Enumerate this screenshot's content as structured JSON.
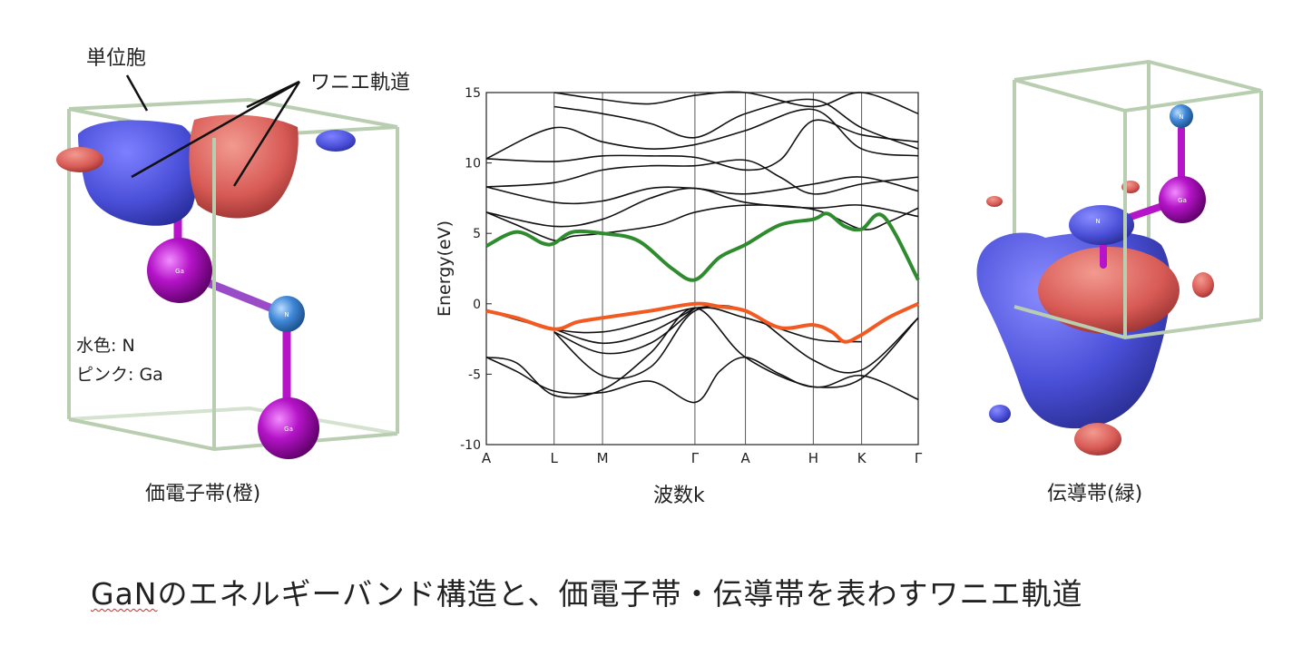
{
  "left_panel": {
    "label_unit_cell": "単位胞",
    "label_wannier": "ワニエ軌道",
    "legend_line1": "水色: N",
    "legend_line2": "ピンク: Ga",
    "atom_ga_top": "Ga",
    "atom_n": "N",
    "atom_ga_bottom": "Ga",
    "caption": "価電子帯(橙)"
  },
  "band_plot": {
    "xlabel": "波数k",
    "ylabel": "Energy(eV)"
  },
  "right_panel": {
    "atom_n_top": "N",
    "atom_ga": "Ga",
    "atom_n_mid": "N",
    "caption": "伝導帯(緑)"
  },
  "figure_caption": {
    "underlined_part": "GaN",
    "rest": "のエネルギーバンド構造と、価電子帯・伝導帯を表わすワニエ軌道"
  },
  "colors": {
    "valence_band": "#f25a22",
    "conduction_band": "#2e8b2e",
    "other_bands": "#111111",
    "cell_frame": "#b9ceb0",
    "orbital_blue": "#4a4fd8",
    "orbital_red": "#d85a55",
    "ga_atom": "#b514c8",
    "n_atom": "#3f87d6"
  },
  "chart_data": {
    "type": "line",
    "xlabel": "波数k",
    "ylabel": "Energy(eV)",
    "ylim": [
      -10,
      15
    ],
    "yticks": [
      -10,
      -5,
      0,
      5,
      10,
      15
    ],
    "kpoints": [
      {
        "label": "A",
        "x": 0.0
      },
      {
        "label": "L",
        "x": 0.157
      },
      {
        "label": "M",
        "x": 0.269
      },
      {
        "label": "Γ",
        "x": 0.483
      },
      {
        "label": "A",
        "x": 0.6
      },
      {
        "label": "H",
        "x": 0.757
      },
      {
        "label": "K",
        "x": 0.869
      },
      {
        "label": "Γ",
        "x": 1.0
      }
    ],
    "valence_band": {
      "name": "価電子帯",
      "color": "#f25a22",
      "points": [
        [
          0.0,
          -0.5
        ],
        [
          0.07,
          -1.0
        ],
        [
          0.157,
          -1.8
        ],
        [
          0.21,
          -1.3
        ],
        [
          0.269,
          -1.0
        ],
        [
          0.38,
          -0.5
        ],
        [
          0.483,
          0.0
        ],
        [
          0.54,
          -0.2
        ],
        [
          0.6,
          -0.5
        ],
        [
          0.68,
          -1.7
        ],
        [
          0.757,
          -1.5
        ],
        [
          0.8,
          -2.0
        ],
        [
          0.83,
          -2.7
        ],
        [
          0.869,
          -2.2
        ],
        [
          0.93,
          -1.0
        ],
        [
          1.0,
          0.0
        ]
      ]
    },
    "conduction_band": {
      "name": "伝導帯",
      "color": "#2e8b2e",
      "points": [
        [
          0.0,
          4.1
        ],
        [
          0.07,
          5.1
        ],
        [
          0.13,
          4.3
        ],
        [
          0.157,
          4.3
        ],
        [
          0.2,
          5.1
        ],
        [
          0.269,
          5.0
        ],
        [
          0.35,
          4.5
        ],
        [
          0.43,
          2.5
        ],
        [
          0.483,
          1.7
        ],
        [
          0.54,
          3.3
        ],
        [
          0.6,
          4.2
        ],
        [
          0.68,
          5.6
        ],
        [
          0.757,
          6.0
        ],
        [
          0.79,
          6.4
        ],
        [
          0.83,
          5.5
        ],
        [
          0.869,
          5.3
        ],
        [
          0.92,
          6.2
        ],
        [
          1.0,
          1.7
        ]
      ]
    },
    "other_bands": [
      [
        [
          0.0,
          -3.8
        ],
        [
          0.07,
          -4.2
        ],
        [
          0.157,
          -6.5
        ],
        [
          0.269,
          -6.1
        ],
        [
          0.38,
          -3.5
        ],
        [
          0.483,
          -0.3
        ],
        [
          0.6,
          -3.8
        ],
        [
          0.757,
          -5.9
        ],
        [
          0.869,
          -5.1
        ],
        [
          1.0,
          -6.8
        ]
      ],
      [
        [
          0.0,
          -3.8
        ],
        [
          0.07,
          -4.8
        ],
        [
          0.157,
          -6.2
        ],
        [
          0.269,
          -6.3
        ],
        [
          0.38,
          -5.5
        ],
        [
          0.483,
          -7.0
        ],
        [
          0.54,
          -4.8
        ],
        [
          0.6,
          -3.8
        ],
        [
          0.68,
          -5.0
        ],
        [
          0.757,
          -5.9
        ],
        [
          0.869,
          -5.3
        ],
        [
          1.0,
          -1.0
        ]
      ],
      [
        [
          0.0,
          -0.5
        ],
        [
          0.157,
          -1.8
        ],
        [
          0.269,
          -2.0
        ],
        [
          0.38,
          -1.2
        ],
        [
          0.483,
          -0.3
        ],
        [
          0.6,
          -0.5
        ],
        [
          0.757,
          -4.0
        ],
        [
          0.869,
          -4.7
        ],
        [
          1.0,
          -1.0
        ]
      ],
      [
        [
          0.157,
          -1.8
        ],
        [
          0.269,
          -2.8
        ],
        [
          0.38,
          -2.0
        ],
        [
          0.483,
          -0.3
        ]
      ],
      [
        [
          0.157,
          -2.0
        ],
        [
          0.269,
          -3.5
        ],
        [
          0.38,
          -2.8
        ],
        [
          0.483,
          -0.3
        ]
      ],
      [
        [
          0.157,
          -2.0
        ],
        [
          0.269,
          -5.1
        ],
        [
          0.38,
          -4.5
        ],
        [
          0.483,
          -0.5
        ],
        [
          0.6,
          -1.0
        ],
        [
          0.757,
          -2.5
        ],
        [
          0.869,
          -2.7
        ]
      ],
      [
        [
          0.0,
          6.5
        ],
        [
          0.07,
          5.6
        ],
        [
          0.157,
          4.5
        ],
        [
          0.2,
          4.8
        ],
        [
          0.269,
          5.0
        ],
        [
          0.4,
          5.6
        ],
        [
          0.483,
          6.5
        ],
        [
          0.6,
          7.0
        ],
        [
          0.757,
          6.7
        ],
        [
          0.869,
          5.3
        ],
        [
          0.93,
          5.8
        ],
        [
          1.0,
          6.8
        ]
      ],
      [
        [
          0.0,
          6.5
        ],
        [
          0.157,
          5.5
        ],
        [
          0.269,
          6.0
        ],
        [
          0.38,
          7.5
        ],
        [
          0.483,
          8.2
        ],
        [
          0.6,
          7.2
        ],
        [
          0.757,
          6.8
        ],
        [
          0.869,
          7.0
        ],
        [
          1.0,
          6.2
        ]
      ],
      [
        [
          0.0,
          8.3
        ],
        [
          0.157,
          7.2
        ],
        [
          0.269,
          7.3
        ],
        [
          0.38,
          8.2
        ],
        [
          0.483,
          8.2
        ],
        [
          0.6,
          7.8
        ],
        [
          0.757,
          8.5
        ],
        [
          0.869,
          9.0
        ],
        [
          1.0,
          8.0
        ]
      ],
      [
        [
          0.0,
          8.3
        ],
        [
          0.157,
          8.6
        ],
        [
          0.269,
          9.5
        ],
        [
          0.38,
          9.8
        ],
        [
          0.483,
          9.8
        ],
        [
          0.6,
          10.2
        ],
        [
          0.68,
          9.0
        ],
        [
          0.757,
          7.8
        ],
        [
          0.869,
          8.5
        ],
        [
          1.0,
          9.0
        ]
      ],
      [
        [
          0.0,
          10.3
        ],
        [
          0.157,
          10.1
        ],
        [
          0.269,
          10.5
        ],
        [
          0.38,
          10.5
        ],
        [
          0.483,
          10.4
        ],
        [
          0.6,
          9.5
        ],
        [
          0.68,
          10.2
        ],
        [
          0.757,
          13.0
        ],
        [
          0.869,
          12.0
        ],
        [
          1.0,
          11.5
        ]
      ],
      [
        [
          0.0,
          10.3
        ],
        [
          0.157,
          12.5
        ],
        [
          0.269,
          11.5
        ],
        [
          0.38,
          11.0
        ],
        [
          0.483,
          11.3
        ],
        [
          0.6,
          12.3
        ],
        [
          0.757,
          13.8
        ],
        [
          0.869,
          11.0
        ],
        [
          1.0,
          10.5
        ]
      ],
      [
        [
          0.157,
          14.0
        ],
        [
          0.269,
          13.5
        ],
        [
          0.38,
          12.8
        ],
        [
          0.483,
          11.8
        ],
        [
          0.6,
          13.5
        ],
        [
          0.757,
          14.5
        ],
        [
          0.869,
          12.5
        ],
        [
          1.0,
          11.0
        ]
      ],
      [
        [
          0.157,
          15.0
        ],
        [
          0.269,
          14.5
        ],
        [
          0.38,
          14.2
        ],
        [
          0.483,
          14.8
        ],
        [
          0.6,
          15.0
        ],
        [
          0.757,
          14.0
        ],
        [
          0.869,
          15.0
        ],
        [
          1.0,
          13.5
        ]
      ]
    ]
  }
}
